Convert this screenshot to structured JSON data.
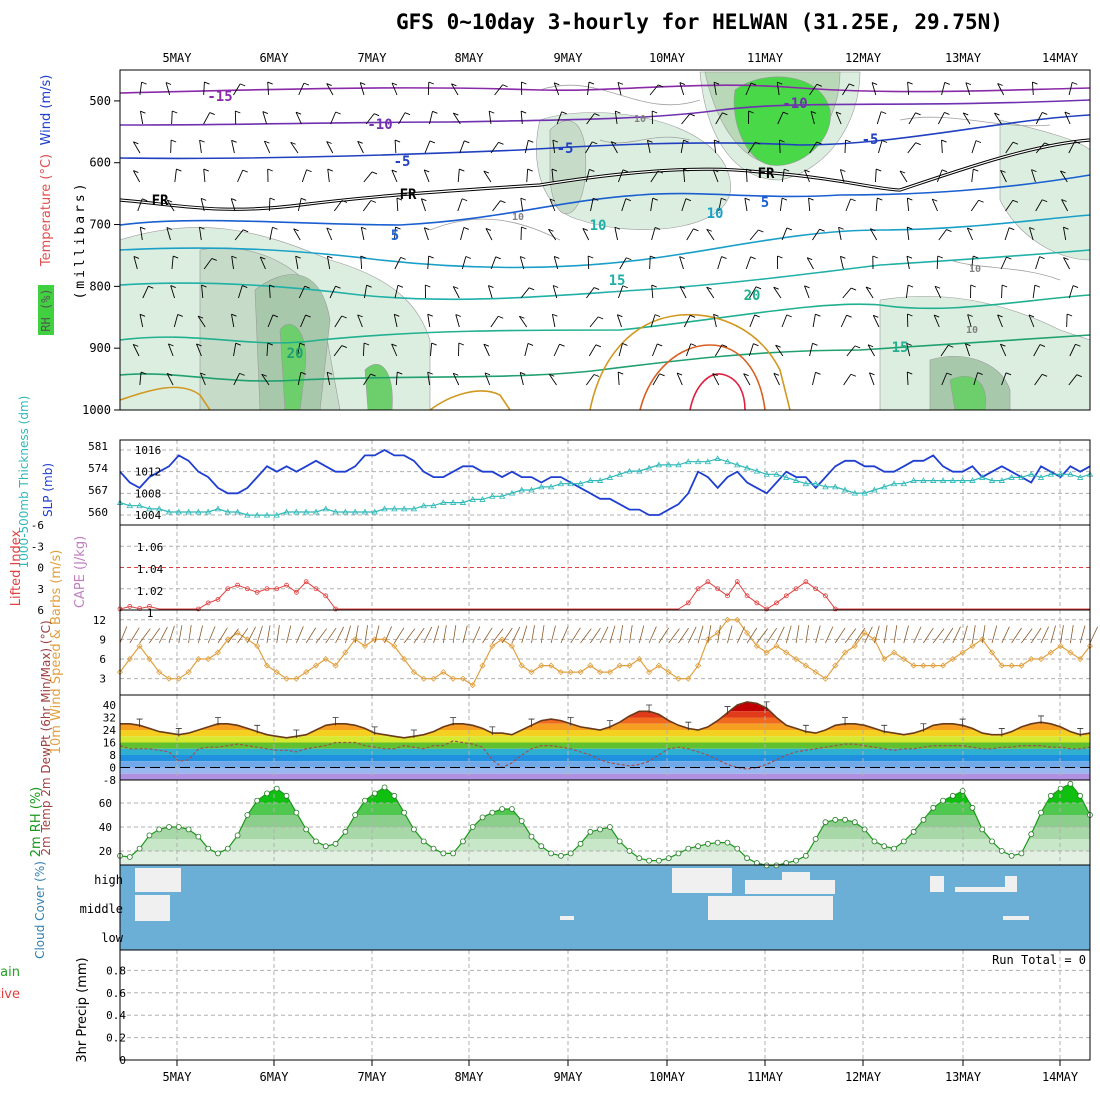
{
  "title": "GFS 0~10day 3-hourly for HELWAN (31.25E, 29.75N)",
  "colors": {
    "slp": "#1f3fd0",
    "thickness": "#2fb8b8",
    "lifted": "#e04040",
    "cape": "#c080c0",
    "wind10": "#e0a040",
    "barb": "#8b5a2b",
    "rh": "#1a9a1a",
    "cloud_bg": "#6baed6",
    "cloud_patch": "#f0f0f0",
    "temp_line": "#6b3a1a",
    "dewpt_line": "#a05050"
  },
  "chart_data": [
    {
      "type": "contour",
      "name": "upper-air",
      "x_labels": [
        "5MAY",
        "6MAY",
        "7MAY",
        "8MAY",
        "9MAY",
        "10MAY",
        "11MAY",
        "12MAY",
        "13MAY",
        "14MAY"
      ],
      "ylabel": "(millibars)",
      "y_ticks": [
        500,
        600,
        700,
        800,
        900,
        1000
      ],
      "legend": {
        "rh": "RH (%)",
        "temp": "Temperature (°C)",
        "wind": "Wind (m/s)"
      },
      "contour_labels": [
        "-15",
        "-10",
        "-10",
        "-5",
        "-5",
        "FR",
        "FR",
        "FR",
        "-5",
        "5",
        "5",
        "10",
        "10",
        "15",
        "15",
        "20",
        "20",
        "10",
        "10",
        "10",
        "10"
      ]
    },
    {
      "type": "line",
      "name": "slp-thickness",
      "ylabel_left": "1000-500mb Thickness (dm)",
      "ylabel_right": "SLP (mb)",
      "left_ticks": [
        581,
        574,
        567,
        560
      ],
      "right_ticks": [
        1016,
        1012,
        1008,
        1004
      ],
      "series": [
        {
          "name": "SLP (mb)",
          "values": [
            1012,
            1010,
            1009,
            1011,
            1012,
            1013,
            1015,
            1014,
            1012,
            1011,
            1009,
            1008,
            1008,
            1009,
            1011,
            1013,
            1012,
            1013,
            1012,
            1013,
            1014,
            1013,
            1012,
            1012,
            1013,
            1015,
            1015,
            1016,
            1015,
            1015,
            1014,
            1012,
            1011,
            1011,
            1012,
            1013,
            1013,
            1012,
            1012,
            1011,
            1012,
            1011,
            1011,
            1010,
            1011,
            1011,
            1010,
            1009,
            1008,
            1007,
            1007,
            1006,
            1005,
            1005,
            1004,
            1004,
            1005,
            1006,
            1008,
            1012,
            1011,
            1009,
            1011,
            1012,
            1010,
            1009,
            1008,
            1010,
            1012,
            1011,
            1011,
            1009,
            1011,
            1013,
            1014,
            1014,
            1013,
            1013,
            1012,
            1012,
            1013,
            1014,
            1014,
            1015,
            1013,
            1012,
            1012,
            1013,
            1011,
            1012,
            1013,
            1012,
            1011,
            1010,
            1013,
            1012,
            1011,
            1013,
            1012,
            1013
          ]
        },
        {
          "name": "1000-500mb Thickness (dm)",
          "values": [
            563,
            562,
            562,
            561,
            561,
            560,
            560,
            560,
            560,
            560,
            561,
            560,
            560,
            559,
            559,
            559,
            559,
            560,
            560,
            560,
            560,
            561,
            560,
            560,
            560,
            560,
            560,
            561,
            561,
            561,
            561,
            562,
            562,
            563,
            563,
            563,
            564,
            564,
            565,
            565,
            566,
            567,
            567,
            568,
            568,
            569,
            569,
            569,
            570,
            570,
            571,
            572,
            573,
            573,
            574,
            575,
            575,
            575,
            576,
            576,
            576,
            577,
            576,
            575,
            574,
            573,
            572,
            572,
            571,
            570,
            569,
            569,
            568,
            568,
            567,
            566,
            566,
            567,
            568,
            569,
            569,
            570,
            570,
            570,
            570,
            570,
            570,
            570,
            571,
            570,
            570,
            571,
            571,
            572,
            571,
            572,
            572,
            572,
            571,
            572
          ]
        }
      ]
    },
    {
      "type": "line",
      "name": "lifted-cape",
      "ylabel_left": "Lifted Index",
      "ylabel_right": "CAPE (J/kg)",
      "left_ticks": [
        -6,
        -3,
        0,
        3,
        6
      ],
      "right_ticks": [
        1.06,
        1.04,
        1.02,
        1
      ],
      "series": [
        {
          "name": "Lifted Index",
          "values": [
            6,
            5.5,
            5.8,
            5.5,
            7,
            7,
            7.5,
            7,
            6,
            5,
            4.5,
            3,
            2.5,
            3,
            3.5,
            3,
            3,
            2.5,
            3.5,
            2,
            3,
            4,
            6,
            8,
            7,
            7,
            7,
            7,
            7,
            8,
            7,
            7,
            7,
            7,
            7,
            7,
            7,
            7,
            7,
            7,
            7,
            7,
            7,
            7,
            7,
            7,
            7,
            7,
            7,
            7,
            7,
            7,
            7,
            7,
            7,
            7,
            7,
            7,
            5,
            3,
            2,
            3,
            4,
            2,
            4,
            5,
            6,
            5,
            4,
            3,
            2,
            3,
            4,
            6,
            7,
            7,
            7,
            7,
            7,
            7,
            7,
            7,
            7,
            7,
            7,
            7,
            7,
            7,
            7,
            7,
            7,
            7,
            7,
            7,
            7,
            7,
            7,
            7,
            7,
            7
          ]
        }
      ]
    },
    {
      "type": "line",
      "name": "wind10",
      "ylabel": "10m Wind Speed & Barbs (m/s)",
      "y_ticks": [
        12,
        9,
        6,
        3
      ],
      "series": [
        {
          "name": "10m Wind Speed",
          "values": [
            4,
            6,
            8,
            6,
            4,
            3,
            3,
            4,
            6,
            6,
            7,
            9,
            10,
            9,
            8,
            5,
            4,
            3,
            3,
            4,
            5,
            6,
            5,
            7,
            9,
            8,
            9,
            9,
            8,
            6,
            4,
            3,
            3,
            4,
            3,
            3,
            2,
            5,
            8,
            9,
            8,
            5,
            4,
            5,
            5,
            4,
            4,
            4,
            5,
            4,
            4,
            5,
            5,
            6,
            4,
            5,
            4,
            3,
            3,
            5,
            9,
            10,
            12,
            12,
            10,
            8,
            7,
            8,
            7,
            6,
            5,
            4,
            3,
            5,
            7,
            8,
            10,
            9,
            6,
            7,
            6,
            5,
            5,
            5,
            5,
            6,
            7,
            8,
            9,
            7,
            5,
            5,
            5,
            6,
            6,
            7,
            8,
            7,
            6,
            8
          ]
        }
      ]
    },
    {
      "type": "area",
      "name": "temp",
      "ylabel": "2m Temp 2m DewPt (6hr Min/Max) (°C)",
      "y_ticks": [
        40,
        32,
        24,
        16,
        8,
        0,
        -8
      ],
      "series": [
        {
          "name": "2m Temp",
          "values": [
            28,
            28,
            27,
            25,
            23,
            22,
            21,
            22,
            24,
            26,
            28,
            28,
            27,
            25,
            23,
            21,
            20,
            19,
            20,
            21,
            24,
            27,
            28,
            28,
            27,
            25,
            22,
            21,
            20,
            19,
            20,
            21,
            23,
            26,
            28,
            28,
            27,
            25,
            22,
            22,
            21,
            24,
            27,
            30,
            31,
            30,
            28,
            26,
            25,
            24,
            26,
            29,
            33,
            36,
            36,
            34,
            30,
            27,
            25,
            24,
            26,
            30,
            35,
            40,
            42,
            41,
            38,
            32,
            27,
            25,
            23,
            22,
            24,
            27,
            28,
            28,
            27,
            25,
            23,
            22,
            21,
            22,
            24,
            27,
            28,
            28,
            27,
            25,
            22,
            21,
            21,
            23,
            26,
            28,
            29,
            28,
            26,
            23,
            21,
            22
          ]
        },
        {
          "name": "2m DewPt",
          "values": [
            14,
            12,
            12,
            12,
            11,
            10,
            4,
            5,
            12,
            13,
            13,
            14,
            15,
            14,
            13,
            12,
            11,
            11,
            10,
            12,
            13,
            14,
            16,
            16,
            16,
            14,
            13,
            12,
            12,
            14,
            13,
            12,
            14,
            14,
            17,
            16,
            15,
            13,
            5,
            0,
            3,
            8,
            12,
            14,
            14,
            13,
            12,
            10,
            8,
            5,
            3,
            2,
            1,
            2,
            4,
            8,
            12,
            13,
            12,
            10,
            8,
            5,
            2,
            0,
            -1,
            0,
            2,
            5,
            8,
            10,
            11,
            12,
            13,
            14,
            15,
            15,
            14,
            13,
            12,
            11,
            12,
            12,
            13,
            14,
            14,
            14,
            14,
            13,
            12,
            12,
            13,
            13,
            14,
            14,
            14,
            13,
            13,
            12,
            12,
            13
          ]
        }
      ]
    },
    {
      "type": "area",
      "name": "rh",
      "ylabel": "2m RH (%)",
      "y_ticks": [
        60,
        40,
        20
      ],
      "series": [
        {
          "name": "2m RH",
          "values": [
            16,
            15,
            22,
            33,
            38,
            40,
            40,
            38,
            32,
            22,
            18,
            22,
            33,
            50,
            62,
            68,
            72,
            66,
            52,
            38,
            28,
            24,
            26,
            36,
            50,
            62,
            68,
            73,
            66,
            52,
            38,
            28,
            22,
            18,
            18,
            28,
            40,
            48,
            52,
            55,
            55,
            45,
            32,
            24,
            18,
            16,
            18,
            26,
            36,
            38,
            40,
            28,
            20,
            14,
            12,
            12,
            14,
            18,
            22,
            24,
            26,
            27,
            27,
            22,
            14,
            10,
            8,
            8,
            10,
            12,
            16,
            30,
            44,
            46,
            46,
            44,
            38,
            28,
            24,
            22,
            28,
            36,
            46,
            56,
            62,
            66,
            70,
            56,
            38,
            28,
            20,
            16,
            18,
            34,
            52,
            66,
            72,
            76,
            66,
            50
          ]
        }
      ]
    },
    {
      "type": "heatmap",
      "name": "cloud",
      "ylabel": "Cloud Cover (%)",
      "y_labels": [
        "high",
        "middle",
        "low"
      ]
    },
    {
      "type": "bar",
      "name": "precip",
      "ylabel_main": "3hr Precip (mm)",
      "legend": {
        "total": "Total / Rain",
        "conv": "Convective"
      },
      "y_ticks": [
        "0.8",
        "0.6",
        "0.4",
        "0.2",
        "0"
      ],
      "values": [],
      "annotation": "Run Total = 0"
    }
  ]
}
